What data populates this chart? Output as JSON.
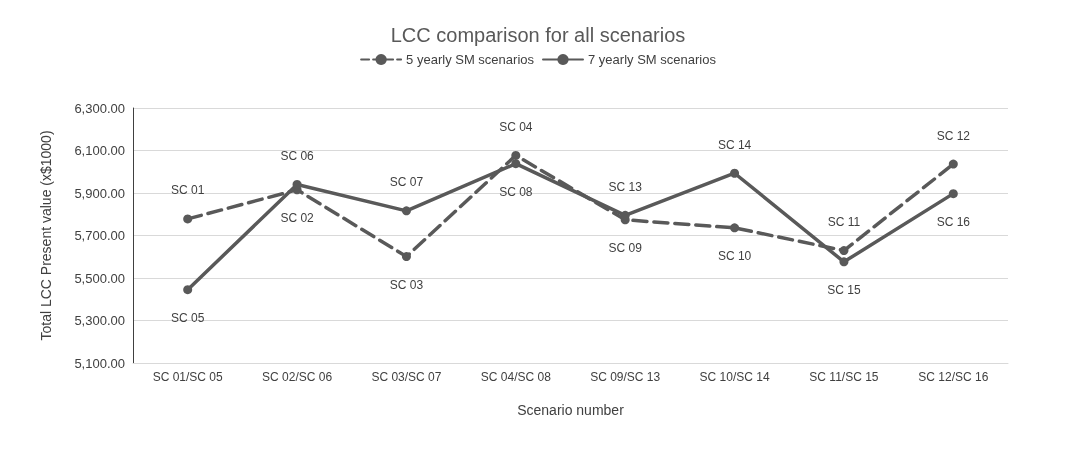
{
  "chart_data": {
    "type": "line",
    "title": "LCC comparison for all scenarios",
    "xlabel": "Scenario number",
    "ylabel": "Total LCC Present value (x$1000)",
    "categories": [
      "SC 01/SC 05",
      "SC 02/SC 06",
      "SC 03/SC 07",
      "SC 04/SC 08",
      "SC 09/SC 13",
      "SC 10/SC 14",
      "SC 11/SC 15",
      "SC 12/SC 16"
    ],
    "series": [
      {
        "name": "5 yearly SM scenarios",
        "color": "#595959",
        "line_style": "dashed",
        "values": [
          5778,
          5915,
          5601,
          6077,
          5774,
          5736,
          5629,
          6036
        ],
        "value_labels": [
          "SC 01",
          "SC 02",
          "SC 03",
          "SC 04",
          "SC 09",
          "SC 10",
          "SC 11",
          "SC 12"
        ]
      },
      {
        "name": "7 yearly SM scenarios",
        "color": "#595959",
        "line_style": "solid",
        "values": [
          5445,
          5940,
          5816,
          6038,
          5795,
          5993,
          5576,
          5897
        ],
        "value_labels": [
          "SC 05",
          "SC 06",
          "SC 07",
          "SC 08",
          "SC 13",
          "SC 14",
          "SC 15",
          "SC 16"
        ]
      }
    ],
    "ylim": [
      5100,
      6300
    ],
    "yticks": [
      {
        "value": 5100,
        "label": "5,100.00"
      },
      {
        "value": 5300,
        "label": "5,300.00"
      },
      {
        "value": 5500,
        "label": "5,500.00"
      },
      {
        "value": 5700,
        "label": "5,700.00"
      },
      {
        "value": 5900,
        "label": "5,900.00"
      },
      {
        "value": 6100,
        "label": "6,100.00"
      },
      {
        "value": 6300,
        "label": "6,300.00"
      }
    ],
    "grid": "y",
    "legend": "top",
    "marker": "circle"
  }
}
